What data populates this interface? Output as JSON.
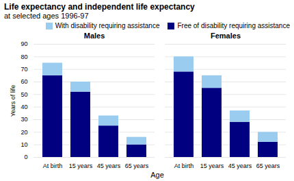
{
  "chart_data": {
    "type": "bar",
    "title": "Life expectancy and independent life expectancy",
    "subtitle": "at selected ages 1996-97",
    "xlabel": "Age",
    "ylabel": "Years of life",
    "categories": [
      "At birth",
      "15 years",
      "45 years",
      "65 years"
    ],
    "groups": [
      "Males",
      "Females"
    ],
    "stacked": true,
    "series": [
      {
        "name": "Free of disability requiring assistance",
        "color": "#000080",
        "values": [
          [
            65,
            52,
            25,
            10
          ],
          [
            68,
            55,
            28,
            12
          ]
        ]
      },
      {
        "name": "With disability requiring assistance",
        "color": "#99CCEE",
        "values": [
          [
            10,
            8,
            8,
            6
          ],
          [
            12,
            10,
            9,
            8
          ]
        ]
      }
    ],
    "ylim": [
      0,
      90
    ],
    "yticks": [
      0,
      10,
      20,
      30,
      40,
      50,
      60,
      70,
      80,
      90
    ],
    "grid": true,
    "legend": "upper right"
  }
}
